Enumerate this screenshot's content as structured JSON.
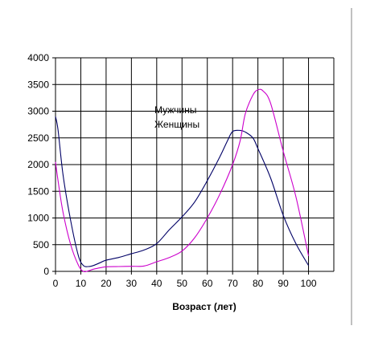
{
  "chart_data": {
    "type": "line",
    "xlabel": "Возраст (лет)",
    "ylabel": "",
    "xlim": [
      0,
      110
    ],
    "ylim": [
      0,
      4000
    ],
    "x_ticks": [
      0,
      10,
      20,
      30,
      40,
      50,
      60,
      70,
      80,
      90,
      100
    ],
    "y_ticks": [
      0,
      500,
      1000,
      1500,
      2000,
      2500,
      3000,
      3500,
      4000
    ],
    "grid": true,
    "legend_position": "center",
    "series": [
      {
        "name": "Мужчины",
        "color": "#000066",
        "x": [
          0,
          1,
          3,
          6,
          9,
          11,
          13,
          15,
          18,
          20,
          25,
          30,
          35,
          40,
          45,
          50,
          55,
          60,
          65,
          68,
          70,
          73,
          75,
          78,
          80,
          85,
          90,
          95,
          100
        ],
        "y": [
          2900,
          2650,
          1800,
          950,
          300,
          110,
          90,
          110,
          170,
          210,
          260,
          330,
          400,
          520,
          780,
          1020,
          1300,
          1700,
          2150,
          2450,
          2620,
          2640,
          2610,
          2500,
          2300,
          1750,
          1050,
          520,
          110
        ]
      },
      {
        "name": "Женщины",
        "color": "#cc00cc",
        "x": [
          0,
          1,
          3,
          6,
          9,
          11,
          13,
          15,
          18,
          20,
          25,
          30,
          35,
          40,
          45,
          50,
          55,
          60,
          65,
          70,
          73,
          75,
          78,
          80,
          82,
          85,
          90,
          95,
          100
        ],
        "y": [
          2050,
          1700,
          1100,
          500,
          120,
          0,
          10,
          40,
          70,
          85,
          90,
          95,
          100,
          180,
          260,
          380,
          630,
          1000,
          1450,
          2000,
          2450,
          2950,
          3300,
          3400,
          3380,
          3150,
          2250,
          1400,
          290
        ]
      }
    ]
  }
}
